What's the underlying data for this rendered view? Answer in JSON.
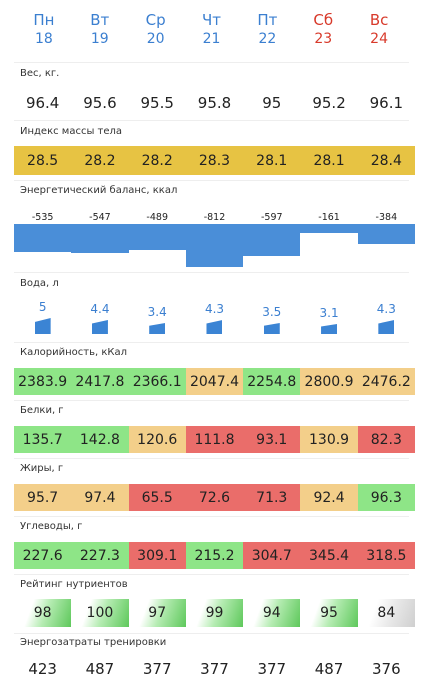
{
  "days": [
    {
      "name": "Пн",
      "date": "18"
    },
    {
      "name": "Вт",
      "date": "19"
    },
    {
      "name": "Ср",
      "date": "20"
    },
    {
      "name": "Чт",
      "date": "21"
    },
    {
      "name": "Пт",
      "date": "22"
    },
    {
      "name": "Сб",
      "date": "23"
    },
    {
      "name": "Вс",
      "date": "24"
    }
  ],
  "weight": {
    "label": "Вес, кг.",
    "values": [
      "96.4",
      "95.6",
      "95.5",
      "95.8",
      "95",
      "95.2",
      "96.1"
    ]
  },
  "bmi": {
    "label": "Индекс массы тела",
    "values": [
      "28.5",
      "28.2",
      "28.2",
      "28.3",
      "28.1",
      "28.1",
      "28.4"
    ]
  },
  "energy_balance": {
    "label": "Энергетический баланс, ккал",
    "values": [
      -535,
      -547,
      -489,
      -812,
      -597,
      -161,
      -384
    ]
  },
  "water": {
    "label": "Вода, л",
    "values": [
      "5",
      "4.4",
      "3.4",
      "4.3",
      "3.5",
      "3.1",
      "4.3"
    ]
  },
  "calories": {
    "label": "Калорийность, кКал",
    "values": [
      "2383.9",
      "2417.8",
      "2366.1",
      "2047.4",
      "2254.8",
      "2800.9",
      "2476.2"
    ],
    "status": [
      "grn",
      "grn",
      "grn",
      "org",
      "grn",
      "org",
      "org"
    ]
  },
  "proteins": {
    "label": "Белки, г",
    "values": [
      "135.7",
      "142.8",
      "120.6",
      "111.8",
      "93.1",
      "130.9",
      "82.3"
    ],
    "status": [
      "grn",
      "grn",
      "org",
      "red",
      "red",
      "org",
      "red"
    ]
  },
  "fats": {
    "label": "Жиры, г",
    "values": [
      "95.7",
      "97.4",
      "65.5",
      "72.6",
      "71.3",
      "92.4",
      "96.3"
    ],
    "status": [
      "org",
      "org",
      "red",
      "red",
      "red",
      "org",
      "grn"
    ]
  },
  "carbs": {
    "label": "Углеводы, г",
    "values": [
      "227.6",
      "227.3",
      "309.1",
      "215.2",
      "304.7",
      "345.4",
      "318.5"
    ],
    "status": [
      "grn",
      "grn",
      "red",
      "grn",
      "red",
      "red",
      "red"
    ]
  },
  "nutrient_rating": {
    "label": "Рейтинг нутриентов",
    "values": [
      "98",
      "100",
      "97",
      "99",
      "94",
      "95",
      "84"
    ],
    "status": [
      "good",
      "good",
      "good",
      "good",
      "good",
      "good",
      "low"
    ]
  },
  "training_energy": {
    "label": "Энергозатраты тренировки",
    "values": [
      "423",
      "487",
      "377",
      "377",
      "377",
      "487",
      "376"
    ]
  },
  "colors": {
    "weekday": "#3b7fd0",
    "weekend": "#d83a2b",
    "bmi": "#e7c343",
    "good": "#8ee587",
    "warn": "#f3cf8a",
    "bad": "#ea6d6a",
    "balance": "#4a8ed8"
  }
}
